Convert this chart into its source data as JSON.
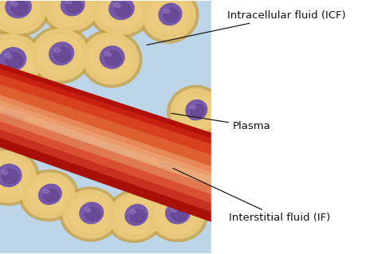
{
  "bg_color": "#bdd5e8",
  "cell_outer_color": "#e8c878",
  "cell_border_color": "#c9a040",
  "cell_inner_color": "#7858a8",
  "cell_inner_dark": "#5a3d88",
  "nucleus_highlight": "#9878c0",
  "label_color": "#111111",
  "label_fontsize": 9.5,
  "label_icf": "Intracellular fluid (ICF)",
  "label_plasma": "Plasma",
  "label_if": "Interstitial fluid (IF)",
  "figsize": [
    4.74,
    3.19
  ],
  "dpi": 100,
  "vessel_bands": [
    {
      "name": "top_dark",
      "color": "#b81408",
      "alpha": 1.0
    },
    {
      "name": "top_edge",
      "color": "#cc2010",
      "alpha": 1.0
    },
    {
      "name": "upper_med",
      "color": "#d44020",
      "alpha": 1.0
    },
    {
      "name": "upper_warm",
      "color": "#dd6030",
      "alpha": 1.0
    },
    {
      "name": "center_hi",
      "color": "#e88060",
      "alpha": 1.0
    },
    {
      "name": "center_glow",
      "color": "#eba080",
      "alpha": 0.85
    },
    {
      "name": "lower_warm",
      "color": "#d55030",
      "alpha": 1.0
    },
    {
      "name": "lower_med",
      "color": "#c83020",
      "alpha": 1.0
    },
    {
      "name": "bot_edge",
      "color": "#b81408",
      "alpha": 1.0
    },
    {
      "name": "bot_dark",
      "color": "#901000",
      "alpha": 1.0
    }
  ],
  "cells": [
    [
      0.45,
      6.55,
      0.78,
      0.68,
      -8
    ],
    [
      1.9,
      6.6,
      0.72,
      0.65,
      5
    ],
    [
      3.2,
      6.5,
      0.76,
      0.66,
      -5
    ],
    [
      4.5,
      6.35,
      0.7,
      0.65,
      10
    ],
    [
      0.3,
      5.15,
      0.8,
      0.7,
      -8
    ],
    [
      1.6,
      5.3,
      0.75,
      0.68,
      5
    ],
    [
      2.95,
      5.2,
      0.74,
      0.68,
      -12
    ],
    [
      0.35,
      3.7,
      0.75,
      0.66,
      -5
    ],
    [
      0.2,
      2.05,
      0.76,
      0.68,
      -8
    ],
    [
      1.3,
      1.55,
      0.7,
      0.6,
      5
    ],
    [
      2.4,
      1.05,
      0.72,
      0.64,
      -5
    ],
    [
      3.6,
      1.0,
      0.7,
      0.62,
      10
    ],
    [
      4.7,
      1.05,
      0.74,
      0.65,
      -8
    ],
    [
      4.5,
      2.5,
      0.7,
      0.64,
      -5
    ],
    [
      5.2,
      3.8,
      0.65,
      0.6,
      8
    ]
  ]
}
